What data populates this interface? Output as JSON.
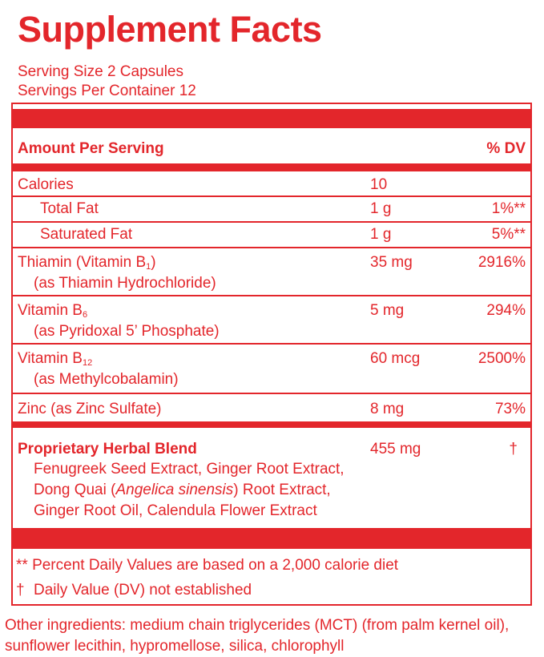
{
  "title": "Supplement Facts",
  "serving_size": "Serving Size 2 Capsules",
  "servings_per_container": "Servings Per Container 12",
  "header": {
    "amount_label": "Amount Per Serving",
    "dv_label": "% DV"
  },
  "rows": {
    "calories": {
      "name": "Calories",
      "amount": "10",
      "dv": ""
    },
    "total_fat": {
      "name": "Total Fat",
      "amount": "1 g",
      "dv": "1%**"
    },
    "saturated_fat": {
      "name": "Saturated Fat",
      "amount": "1 g",
      "dv": "5%**"
    },
    "thiamin": {
      "name": "Thiamin (Vitamin B",
      "sub": "1",
      "name_end": ")",
      "source": "(as Thiamin Hydrochloride)",
      "amount": "35 mg",
      "dv": "2916%"
    },
    "b6": {
      "name": "Vitamin B",
      "sub": "6",
      "source": "(as Pyridoxal 5’ Phosphate)",
      "amount": "5 mg",
      "dv": "294%"
    },
    "b12": {
      "name": "Vitamin B",
      "sub": "12",
      "source": "(as Methylcobalamin)",
      "amount": "60 mcg",
      "dv": "2500%"
    },
    "zinc": {
      "name": "Zinc (as Zinc Sulfate)",
      "amount": "8 mg",
      "dv": "73%"
    }
  },
  "blend": {
    "name": "Proprietary Herbal Blend",
    "amount": "455 mg",
    "dv": "†",
    "line1": "Fenugreek Seed Extract, Ginger Root Extract,",
    "line2_a": "Dong Quai (",
    "line2_italic": "Angelica sinensis",
    "line2_b": ") Root Extract,",
    "line3": "Ginger Root Oil, Calendula Flower Extract"
  },
  "footnotes": {
    "percent_note": "** Percent Daily Values are based on a 2,000 calorie diet",
    "dagger_mark": "†",
    "dagger_note": "Daily Value (DV) not established"
  },
  "other_ingredients": "Other ingredients: medium chain triglycerides (MCT) (from palm kernel oil), sunflower lecithin, hypromellose, silica, chlorophyll",
  "colors": {
    "accent": "#e3262b",
    "background": "#ffffff"
  }
}
